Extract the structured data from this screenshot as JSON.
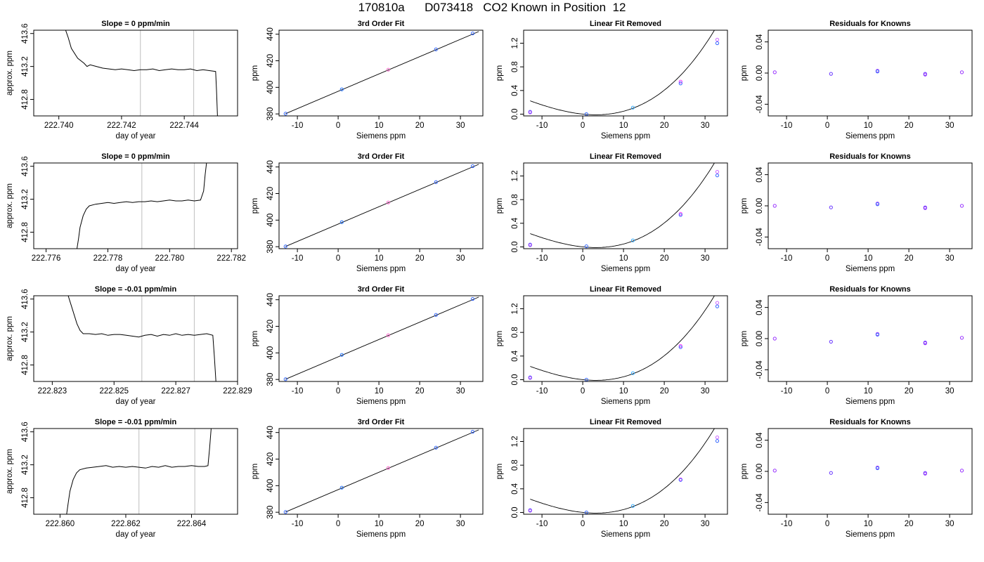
{
  "page": {
    "title": "170810a      D073418   CO2 Known in Position  12"
  },
  "chart_data": [
    {
      "type": "line",
      "panel": "time",
      "row": 1,
      "title": "Slope =  0  ppm/min",
      "xlabel": "day of year",
      "ylabel": "approx. ppm",
      "xlim": [
        222.7392,
        222.7457
      ],
      "ylim": [
        412.6,
        413.64
      ],
      "xticks": [
        222.74,
        222.742,
        222.744
      ],
      "xtick_labels": [
        "222.740",
        "222.742",
        "222.744"
      ],
      "yticks": [
        412.8,
        413.2,
        413.6
      ],
      "ytick_labels": [
        "412.8",
        "413.2",
        "413.6"
      ],
      "vlines": [
        222.7426,
        222.7443
      ],
      "x": [
        222.7402,
        222.7403,
        222.7404,
        222.7406,
        222.7408,
        222.7409,
        222.741,
        222.7412,
        222.7414,
        222.7416,
        222.7418,
        222.742,
        222.7422,
        222.7424,
        222.7426,
        222.7428,
        222.743,
        222.7432,
        222.7434,
        222.7436,
        222.7438,
        222.744,
        222.7442,
        222.7444,
        222.7446,
        222.7448,
        222.745,
        222.74503,
        222.74506
      ],
      "y": [
        413.66,
        413.55,
        413.42,
        413.3,
        413.24,
        413.2,
        413.22,
        413.2,
        413.18,
        413.17,
        413.16,
        413.17,
        413.16,
        413.15,
        413.16,
        413.16,
        413.17,
        413.15,
        413.16,
        413.17,
        413.16,
        413.16,
        413.17,
        413.15,
        413.16,
        413.15,
        413.14,
        412.9,
        412.6
      ]
    },
    {
      "type": "scatter",
      "panel": "fit",
      "row": 1,
      "title": "3rd Order Fit",
      "xlabel": "Siemens ppm",
      "ylabel": "ppm",
      "xlim": [
        -14.5,
        35.5
      ],
      "ylim": [
        378.5,
        443
      ],
      "xticks": [
        -10,
        0,
        10,
        20,
        30
      ],
      "yticks": [
        380,
        400,
        420,
        440
      ],
      "x": [
        -12.9,
        0.9,
        12.3,
        24.0,
        33.0
      ],
      "y": [
        380.2,
        398.5,
        413.3,
        428.6,
        440.6
      ],
      "point_colors": [
        "#3366ff",
        "#1f6fff",
        "#ff66cc",
        "#3366ff",
        "#3366ff"
      ]
    },
    {
      "type": "scatter",
      "panel": "linear",
      "row": 1,
      "title": "Linear Fit Removed",
      "xlabel": "Siemens ppm",
      "ylabel": "ppm",
      "xlim": [
        -14.5,
        35.5
      ],
      "ylim": [
        -0.03,
        1.42
      ],
      "xticks": [
        -10,
        0,
        10,
        20,
        30
      ],
      "yticks": [
        0.0,
        0.4,
        0.8,
        1.2
      ],
      "ytick_labels": [
        "0.0",
        "0.4",
        "0.8",
        "1.2"
      ],
      "curve": [
        0.0008,
        -0.0071,
        0.00102,
        1.73e-05
      ],
      "x": [
        -12.9,
        -12.9,
        0.9,
        12.3,
        24.0,
        24.0,
        33.0,
        33.0
      ],
      "y": [
        0.04,
        0.03,
        0.0,
        0.11,
        0.55,
        0.52,
        1.26,
        1.2
      ],
      "point_colors": [
        "#6666ff",
        "#9933ff",
        "#3366ff",
        "#33aaff",
        "#ff33ff",
        "#3366ff",
        "#cc66ff",
        "#3366ff"
      ]
    },
    {
      "type": "scatter",
      "panel": "resid",
      "row": 1,
      "title": "Residuals for Knowns",
      "xlabel": "Siemens ppm",
      "ylabel": "ppm",
      "xlim": [
        -14.5,
        35.5
      ],
      "ylim": [
        -0.055,
        0.055
      ],
      "xticks": [
        -10,
        0,
        10,
        20,
        30
      ],
      "yticks": [
        -0.04,
        0.0,
        0.04
      ],
      "ytick_labels": [
        "-0.04",
        "0.00",
        "0.04"
      ],
      "x": [
        -12.9,
        0.9,
        12.3,
        12.3,
        24.0,
        24.0,
        33.0
      ],
      "y": [
        0.001,
        -0.001,
        0.003,
        0.002,
        -0.001,
        -0.002,
        0.001
      ],
      "point_colors": [
        "#9933ff",
        "#6633ff",
        "#9933ff",
        "#3366ff",
        "#6633ff",
        "#9933ff",
        "#9933ff"
      ]
    },
    {
      "type": "line",
      "panel": "time",
      "row": 2,
      "title": "Slope =  0  ppm/min",
      "xlabel": "day of year",
      "ylabel": "approx. ppm",
      "xlim": [
        222.7756,
        222.7822
      ],
      "ylim": [
        412.6,
        413.64
      ],
      "xticks": [
        222.776,
        222.778,
        222.78,
        222.782
      ],
      "xtick_labels": [
        "222.776",
        "222.778",
        "222.780",
        "222.782"
      ],
      "yticks": [
        412.8,
        413.2,
        413.6
      ],
      "ytick_labels": [
        "412.8",
        "413.2",
        "413.6"
      ],
      "vlines": [
        222.7791,
        222.7808
      ],
      "x": [
        222.777,
        222.77705,
        222.7771,
        222.7772,
        222.7773,
        222.7774,
        222.7776,
        222.7778,
        222.778,
        222.7782,
        222.7784,
        222.7786,
        222.7788,
        222.779,
        222.7792,
        222.7794,
        222.7796,
        222.7798,
        222.78,
        222.7802,
        222.7804,
        222.7806,
        222.7808,
        222.781,
        222.7811,
        222.78115,
        222.7812
      ],
      "y": [
        412.6,
        412.72,
        412.86,
        413.0,
        413.08,
        413.12,
        413.14,
        413.15,
        413.16,
        413.15,
        413.16,
        413.17,
        413.16,
        413.17,
        413.17,
        413.18,
        413.17,
        413.18,
        413.19,
        413.18,
        413.18,
        413.19,
        413.18,
        413.19,
        413.3,
        413.5,
        413.66
      ]
    },
    {
      "type": "scatter",
      "panel": "fit",
      "row": 2,
      "title": "3rd Order Fit",
      "xlabel": "Siemens ppm",
      "ylabel": "ppm",
      "xlim": [
        -14.5,
        35.5
      ],
      "ylim": [
        378.5,
        443
      ],
      "xticks": [
        -10,
        0,
        10,
        20,
        30
      ],
      "yticks": [
        380,
        400,
        420,
        440
      ],
      "x": [
        -12.9,
        0.9,
        12.3,
        24.0,
        33.0
      ],
      "y": [
        380.2,
        398.5,
        413.3,
        428.6,
        440.6
      ],
      "point_colors": [
        "#3366ff",
        "#1f6fff",
        "#ff66cc",
        "#3366ff",
        "#3366ff"
      ]
    },
    {
      "type": "scatter",
      "panel": "linear",
      "row": 2,
      "title": "Linear Fit Removed",
      "xlabel": "Siemens ppm",
      "ylabel": "ppm",
      "xlim": [
        -14.5,
        35.5
      ],
      "ylim": [
        -0.03,
        1.42
      ],
      "xticks": [
        -10,
        0,
        10,
        20,
        30
      ],
      "yticks": [
        0.0,
        0.4,
        0.8,
        1.2
      ],
      "ytick_labels": [
        "0.0",
        "0.4",
        "0.8",
        "1.2"
      ],
      "curve": [
        0.0008,
        -0.0071,
        0.00102,
        1.73e-05
      ],
      "x": [
        -12.9,
        -12.9,
        0.9,
        12.3,
        24.0,
        24.0,
        33.0,
        33.0
      ],
      "y": [
        0.04,
        0.03,
        0.01,
        0.11,
        0.56,
        0.54,
        1.27,
        1.21
      ],
      "point_colors": [
        "#6666ff",
        "#9933ff",
        "#3366ff",
        "#33aaff",
        "#ff33ff",
        "#3366ff",
        "#cc66ff",
        "#3366ff"
      ]
    },
    {
      "type": "scatter",
      "panel": "resid",
      "row": 2,
      "title": "Residuals for Knowns",
      "xlabel": "Siemens ppm",
      "ylabel": "ppm",
      "xlim": [
        -14.5,
        35.5
      ],
      "ylim": [
        -0.055,
        0.055
      ],
      "xticks": [
        -10,
        0,
        10,
        20,
        30
      ],
      "yticks": [
        -0.04,
        0.0,
        0.04
      ],
      "ytick_labels": [
        "-0.04",
        "0.00",
        "0.04"
      ],
      "x": [
        -12.9,
        0.9,
        12.3,
        12.3,
        24.0,
        24.0,
        33.0
      ],
      "y": [
        0.0,
        -0.002,
        0.003,
        0.002,
        -0.002,
        -0.003,
        0.0
      ],
      "point_colors": [
        "#9933ff",
        "#6633ff",
        "#9933ff",
        "#3366ff",
        "#6633ff",
        "#9933ff",
        "#9933ff"
      ]
    },
    {
      "type": "line",
      "panel": "time",
      "row": 3,
      "title": "Slope =  -0.01  ppm/min",
      "xlabel": "day of year",
      "ylabel": "approx. ppm",
      "xlim": [
        222.8224,
        222.829
      ],
      "ylim": [
        412.6,
        413.64
      ],
      "xticks": [
        222.823,
        222.825,
        222.827,
        222.829
      ],
      "xtick_labels": [
        "222.823",
        "222.825",
        "222.827",
        "222.829"
      ],
      "yticks": [
        412.8,
        413.2,
        413.6
      ],
      "ytick_labels": [
        "412.8",
        "413.2",
        "413.6"
      ],
      "vlines": [
        222.8259,
        222.8276
      ],
      "x": [
        222.8235,
        222.8236,
        222.8237,
        222.8238,
        222.8239,
        222.824,
        222.8242,
        222.8244,
        222.8246,
        222.8248,
        222.825,
        222.8252,
        222.8254,
        222.8256,
        222.8258,
        222.826,
        222.8262,
        222.8264,
        222.8266,
        222.8268,
        222.827,
        222.8272,
        222.8274,
        222.8276,
        222.8278,
        222.828,
        222.8282,
        222.82825,
        222.8283
      ],
      "y": [
        413.66,
        413.54,
        413.42,
        413.3,
        413.22,
        413.18,
        413.18,
        413.17,
        413.18,
        413.16,
        413.17,
        413.17,
        413.16,
        413.15,
        413.14,
        413.16,
        413.17,
        413.15,
        413.17,
        413.16,
        413.18,
        413.16,
        413.17,
        413.16,
        413.17,
        413.18,
        413.16,
        412.9,
        412.6
      ]
    },
    {
      "type": "scatter",
      "panel": "fit",
      "row": 3,
      "title": "3rd Order Fit",
      "xlabel": "Siemens ppm",
      "ylabel": "ppm",
      "xlim": [
        -14.5,
        35.5
      ],
      "ylim": [
        378.5,
        443
      ],
      "xticks": [
        -10,
        0,
        10,
        20,
        30
      ],
      "yticks": [
        380,
        400,
        420,
        440
      ],
      "x": [
        -12.9,
        0.9,
        12.3,
        24.0,
        33.0
      ],
      "y": [
        380.2,
        398.5,
        413.3,
        428.6,
        440.6
      ],
      "point_colors": [
        "#3366ff",
        "#1f6fff",
        "#ff66cc",
        "#3366ff",
        "#3366ff"
      ]
    },
    {
      "type": "scatter",
      "panel": "linear",
      "row": 3,
      "title": "Linear Fit Removed",
      "xlabel": "Siemens ppm",
      "ylabel": "ppm",
      "xlim": [
        -14.5,
        35.5
      ],
      "ylim": [
        -0.03,
        1.42
      ],
      "xticks": [
        -10,
        0,
        10,
        20,
        30
      ],
      "yticks": [
        0.0,
        0.4,
        0.8,
        1.2
      ],
      "ytick_labels": [
        "0.0",
        "0.4",
        "0.8",
        "1.2"
      ],
      "curve": [
        0.0008,
        -0.0071,
        0.00102,
        1.73e-05
      ],
      "x": [
        -12.9,
        -12.9,
        0.9,
        12.3,
        24.0,
        24.0,
        33.0,
        33.0
      ],
      "y": [
        0.04,
        0.03,
        0.0,
        0.11,
        0.57,
        0.55,
        1.3,
        1.24
      ],
      "point_colors": [
        "#6666ff",
        "#9933ff",
        "#3366ff",
        "#33aaff",
        "#ff33ff",
        "#3366ff",
        "#cc66ff",
        "#3366ff"
      ]
    },
    {
      "type": "scatter",
      "panel": "resid",
      "row": 3,
      "title": "Residuals for Knowns",
      "xlabel": "Siemens ppm",
      "ylabel": "ppm",
      "xlim": [
        -14.5,
        35.5
      ],
      "ylim": [
        -0.055,
        0.055
      ],
      "xticks": [
        -10,
        0,
        10,
        20,
        30
      ],
      "yticks": [
        -0.04,
        0.0,
        0.04
      ],
      "ytick_labels": [
        "-0.04",
        "0.00",
        "0.04"
      ],
      "x": [
        -12.9,
        0.9,
        12.3,
        12.3,
        24.0,
        24.0,
        33.0
      ],
      "y": [
        0.0,
        -0.004,
        0.006,
        0.005,
        -0.005,
        -0.006,
        0.001
      ],
      "point_colors": [
        "#9933ff",
        "#6633ff",
        "#9933ff",
        "#3366ff",
        "#6633ff",
        "#9933ff",
        "#9933ff"
      ]
    },
    {
      "type": "line",
      "panel": "time",
      "row": 4,
      "title": "Slope =  -0.01  ppm/min",
      "xlabel": "day of year",
      "ylabel": "approx. ppm",
      "xlim": [
        222.8592,
        222.8654
      ],
      "ylim": [
        412.6,
        413.64
      ],
      "xticks": [
        222.86,
        222.862,
        222.864
      ],
      "xtick_labels": [
        "222.860",
        "222.862",
        "222.864"
      ],
      "yticks": [
        412.8,
        413.2,
        413.6
      ],
      "ytick_labels": [
        "412.8",
        "413.2",
        "413.6"
      ],
      "vlines": [
        222.8624,
        222.8641
      ],
      "x": [
        222.8602,
        222.86025,
        222.8603,
        222.8604,
        222.8605,
        222.8606,
        222.8608,
        222.861,
        222.8612,
        222.8614,
        222.8616,
        222.8618,
        222.862,
        222.8622,
        222.8624,
        222.8626,
        222.8628,
        222.863,
        222.8632,
        222.8634,
        222.8636,
        222.8638,
        222.864,
        222.8642,
        222.8644,
        222.8645,
        222.86455,
        222.8646
      ],
      "y": [
        412.6,
        412.74,
        412.88,
        413.02,
        413.1,
        413.14,
        413.16,
        413.17,
        413.18,
        413.19,
        413.17,
        413.18,
        413.17,
        413.18,
        413.17,
        413.16,
        413.18,
        413.17,
        413.19,
        413.17,
        413.18,
        413.18,
        413.19,
        413.18,
        413.18,
        413.19,
        413.4,
        413.66
      ]
    },
    {
      "type": "scatter",
      "panel": "fit",
      "row": 4,
      "title": "3rd Order Fit",
      "xlabel": "Siemens ppm",
      "ylabel": "ppm",
      "xlim": [
        -14.5,
        35.5
      ],
      "ylim": [
        378.5,
        443
      ],
      "xticks": [
        -10,
        0,
        10,
        20,
        30
      ],
      "yticks": [
        380,
        400,
        420,
        440
      ],
      "x": [
        -12.9,
        0.9,
        12.3,
        24.0,
        33.0
      ],
      "y": [
        380.2,
        398.5,
        413.3,
        428.6,
        440.6
      ],
      "point_colors": [
        "#3366ff",
        "#1f6fff",
        "#ff66cc",
        "#3366ff",
        "#3366ff"
      ]
    },
    {
      "type": "scatter",
      "panel": "linear",
      "row": 4,
      "title": "Linear Fit Removed",
      "xlabel": "Siemens ppm",
      "ylabel": "ppm",
      "xlim": [
        -14.5,
        35.5
      ],
      "ylim": [
        -0.03,
        1.42
      ],
      "xticks": [
        -10,
        0,
        10,
        20,
        30
      ],
      "yticks": [
        0.0,
        0.4,
        0.8,
        1.2
      ],
      "ytick_labels": [
        "0.0",
        "0.4",
        "0.8",
        "1.2"
      ],
      "curve": [
        0.0008,
        -0.0071,
        0.00102,
        1.73e-05
      ],
      "x": [
        -12.9,
        -12.9,
        0.9,
        12.3,
        24.0,
        24.0,
        33.0,
        33.0
      ],
      "y": [
        0.04,
        0.03,
        0.0,
        0.11,
        0.56,
        0.55,
        1.27,
        1.21
      ],
      "point_colors": [
        "#6666ff",
        "#9933ff",
        "#3366ff",
        "#33aaff",
        "#ff33ff",
        "#3366ff",
        "#cc66ff",
        "#3366ff"
      ]
    },
    {
      "type": "scatter",
      "panel": "resid",
      "row": 4,
      "title": "Residuals for Knowns",
      "xlabel": "Siemens ppm",
      "ylabel": "ppm",
      "xlim": [
        -14.5,
        35.5
      ],
      "ylim": [
        -0.055,
        0.055
      ],
      "xticks": [
        -10,
        0,
        10,
        20,
        30
      ],
      "yticks": [
        -0.04,
        0.0,
        0.04
      ],
      "ytick_labels": [
        "-0.04",
        "0.00",
        "0.04"
      ],
      "x": [
        -12.9,
        0.9,
        12.3,
        12.3,
        24.0,
        24.0,
        33.0
      ],
      "y": [
        0.001,
        -0.002,
        0.005,
        0.004,
        -0.002,
        -0.003,
        0.001
      ],
      "point_colors": [
        "#9933ff",
        "#6633ff",
        "#9933ff",
        "#3366ff",
        "#6633ff",
        "#9933ff",
        "#9933ff"
      ]
    }
  ]
}
